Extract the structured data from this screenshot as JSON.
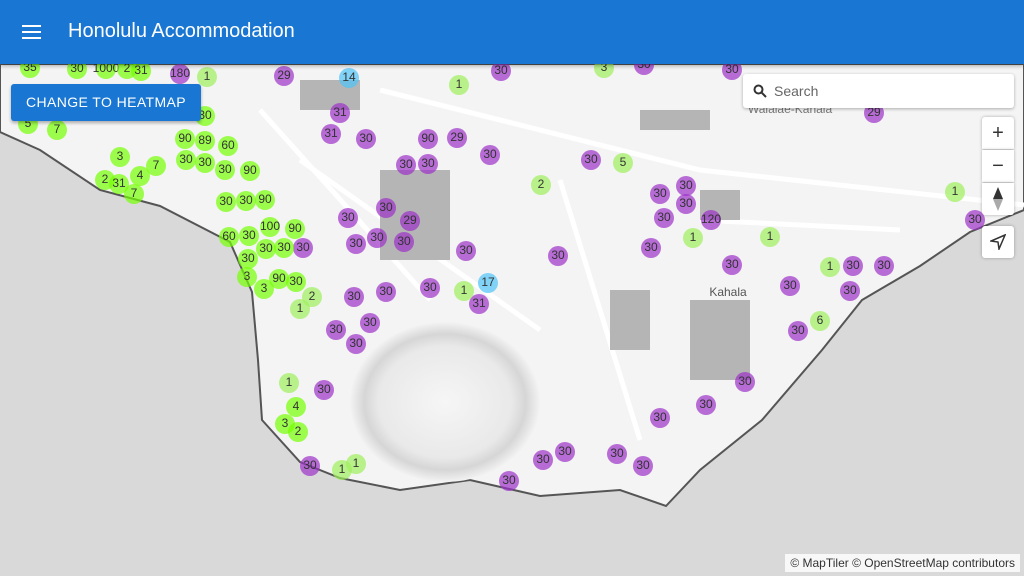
{
  "header": {
    "title": "Honolulu Accommodation"
  },
  "button": {
    "label": "CHANGE TO HEATMAP"
  },
  "search": {
    "placeholder": "Search"
  },
  "map": {
    "place_labels": [
      "Waialae-Kahala",
      "Kahala"
    ],
    "markers": [
      {
        "label": 30,
        "color": "#9b30c8"
      },
      {
        "label": 30,
        "color": "#9b30c8"
      },
      {
        "label": 30,
        "color": "#9b30c8"
      },
      {
        "label": 180,
        "color": "#9b30c8"
      },
      {
        "label": 29,
        "color": "#9b30c8"
      },
      {
        "label": 31,
        "color": "#9b30c8"
      },
      {
        "label": 31,
        "color": "#9b30c8"
      },
      {
        "label": 30,
        "color": "#9b30c8"
      },
      {
        "label": 90,
        "color": "#9b30c8"
      },
      {
        "label": 29,
        "color": "#9b30c8"
      },
      {
        "label": 30,
        "color": "#9b30c8"
      },
      {
        "label": 30,
        "color": "#9b30c8"
      },
      {
        "label": 30,
        "color": "#9b30c8"
      },
      {
        "label": 30,
        "color": "#9b30c8"
      },
      {
        "label": 30,
        "color": "#9b30c8"
      },
      {
        "label": 30,
        "color": "#9b30c8"
      },
      {
        "label": 30,
        "color": "#9b30c8"
      },
      {
        "label": 30,
        "color": "#9b30c8"
      },
      {
        "label": 120,
        "color": "#9b30c8"
      },
      {
        "label": 29,
        "color": "#9b30c8"
      },
      {
        "label": 30,
        "color": "#9b30c8"
      },
      {
        "label": 30,
        "color": "#9b30c8"
      },
      {
        "label": 29,
        "color": "#9b30c8"
      },
      {
        "label": 30,
        "color": "#9b30c8"
      },
      {
        "label": 30,
        "color": "#9b30c8"
      },
      {
        "label": 30,
        "color": "#9b30c8"
      },
      {
        "label": 30,
        "color": "#9b30c8"
      },
      {
        "label": 30,
        "color": "#9b30c8"
      },
      {
        "label": 30,
        "color": "#9b30c8"
      },
      {
        "label": 30,
        "color": "#9b30c8"
      },
      {
        "label": 30,
        "color": "#9b30c8"
      },
      {
        "label": 30,
        "color": "#9b30c8"
      },
      {
        "label": 30,
        "color": "#9b30c8"
      },
      {
        "label": 30,
        "color": "#9b30c8"
      },
      {
        "label": 30,
        "color": "#9b30c8"
      },
      {
        "label": 31,
        "color": "#9b30c8"
      },
      {
        "label": 30,
        "color": "#9b30c8"
      },
      {
        "label": 30,
        "color": "#9b30c8"
      },
      {
        "label": 30,
        "color": "#9b30c8"
      },
      {
        "label": 30,
        "color": "#9b30c8"
      },
      {
        "label": 30,
        "color": "#9b30c8"
      },
      {
        "label": 30,
        "color": "#9b30c8"
      },
      {
        "label": 30,
        "color": "#9b30c8"
      },
      {
        "label": 30,
        "color": "#9b30c8"
      },
      {
        "label": 30,
        "color": "#9b30c8"
      },
      {
        "label": 30,
        "color": "#9b30c8"
      },
      {
        "label": 30,
        "color": "#9b30c8"
      },
      {
        "label": 30,
        "color": "#9b30c8"
      },
      {
        "label": 30,
        "color": "#9b30c8"
      },
      {
        "label": 30,
        "color": "#9b30c8"
      },
      {
        "label": 30,
        "color": "#9b30c8"
      },
      {
        "label": 30,
        "color": "#9b30c8"
      },
      {
        "label": 30,
        "color": "#9b30c8"
      },
      {
        "label": 30,
        "color": "#9b30c8"
      },
      {
        "label": 35,
        "color": "#76ff03"
      },
      {
        "label": 30,
        "color": "#76ff03"
      },
      {
        "label": 1000,
        "color": "#76ff03"
      },
      {
        "label": 2,
        "color": "#76ff03"
      },
      {
        "label": 31,
        "color": "#76ff03"
      },
      {
        "label": 3,
        "color": "#76ff03"
      },
      {
        "label": 4,
        "color": "#76ff03"
      },
      {
        "label": 7,
        "color": "#76ff03"
      },
      {
        "label": 2,
        "color": "#76ff03"
      },
      {
        "label": 31,
        "color": "#76ff03"
      },
      {
        "label": 7,
        "color": "#76ff03"
      },
      {
        "label": 90,
        "color": "#76ff03"
      },
      {
        "label": 89,
        "color": "#76ff03"
      },
      {
        "label": 30,
        "color": "#76ff03"
      },
      {
        "label": 30,
        "color": "#76ff03"
      },
      {
        "label": 60,
        "color": "#76ff03"
      },
      {
        "label": 90,
        "color": "#76ff03"
      },
      {
        "label": 30,
        "color": "#76ff03"
      },
      {
        "label": 30,
        "color": "#76ff03"
      },
      {
        "label": 30,
        "color": "#76ff03"
      },
      {
        "label": 90,
        "color": "#76ff03"
      },
      {
        "label": 100,
        "color": "#76ff03"
      },
      {
        "label": 90,
        "color": "#76ff03"
      },
      {
        "label": 60,
        "color": "#76ff03"
      },
      {
        "label": 30,
        "color": "#76ff03"
      },
      {
        "label": 30,
        "color": "#76ff03"
      },
      {
        "label": 30,
        "color": "#76ff03"
      },
      {
        "label": 30,
        "color": "#76ff03"
      },
      {
        "label": 90,
        "color": "#76ff03"
      },
      {
        "label": 3,
        "color": "#76ff03"
      },
      {
        "label": 3,
        "color": "#76ff03"
      },
      {
        "label": 30,
        "color": "#76ff03"
      },
      {
        "label": 30,
        "color": "#76ff03"
      },
      {
        "label": 5,
        "color": "#76ff03"
      },
      {
        "label": 7,
        "color": "#76ff03"
      },
      {
        "label": 4,
        "color": "#76ff03"
      },
      {
        "label": 3,
        "color": "#76ff03"
      },
      {
        "label": 2,
        "color": "#76ff03"
      },
      {
        "label": 2,
        "color": "#9ef05c"
      },
      {
        "label": 2,
        "color": "#9ef05c"
      },
      {
        "label": 1,
        "color": "#9ef05c"
      },
      {
        "label": 1,
        "color": "#9ef05c"
      },
      {
        "label": 3,
        "color": "#9ef05c"
      },
      {
        "label": 5,
        "color": "#9ef05c"
      },
      {
        "label": 1,
        "color": "#9ef05c"
      },
      {
        "label": 1,
        "color": "#9ef05c"
      },
      {
        "label": 1,
        "color": "#9ef05c"
      },
      {
        "label": 1,
        "color": "#9ef05c"
      },
      {
        "label": 1,
        "color": "#9ef05c"
      },
      {
        "label": 1,
        "color": "#9ef05c"
      },
      {
        "label": 1,
        "color": "#9ef05c"
      },
      {
        "label": 6,
        "color": "#9ef05c"
      },
      {
        "label": 1,
        "color": "#9ef05c"
      },
      {
        "label": 1,
        "color": "#9ef05c"
      },
      {
        "label": 14,
        "color": "#4fc3f7"
      },
      {
        "label": 17,
        "color": "#4fc3f7"
      }
    ]
  },
  "attribution": "© MapTiler © OpenStreetMap contributors"
}
